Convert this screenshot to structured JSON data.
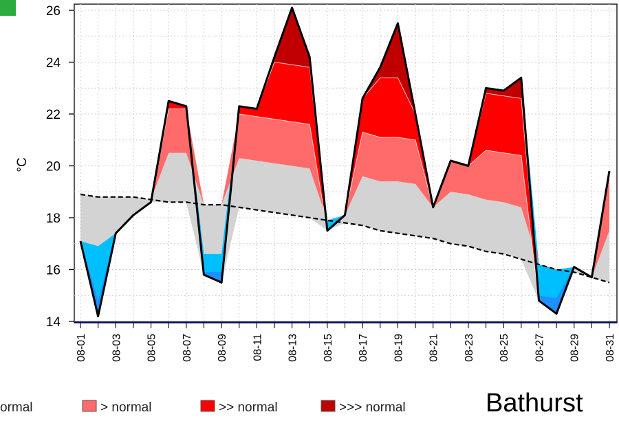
{
  "station_name": "Bathurst",
  "colors": {
    "normal": "#d3d3d3",
    "below_normal": "#1e90ff",
    "below_light": "#00bfff",
    "above_normal": "#ff6a6a",
    "above_above_normal": "#ff0000",
    "above_above_above_normal": "#c00000",
    "badge": "#2eab3e"
  },
  "chart_data": {
    "type": "area",
    "ylabel": "°C",
    "ylim": [
      14,
      26
    ],
    "yticks": [
      "14",
      "16",
      "18",
      "20",
      "22",
      "24",
      "26"
    ],
    "grid": true,
    "x": [
      "08-01",
      "08-02",
      "08-03",
      "08-04",
      "08-05",
      "08-06",
      "08-07",
      "08-08",
      "08-09",
      "08-10",
      "08-11",
      "08-12",
      "08-13",
      "08-14",
      "08-15",
      "08-16",
      "08-17",
      "08-18",
      "08-19",
      "08-20",
      "08-21",
      "08-22",
      "08-23",
      "08-24",
      "08-25",
      "08-26",
      "08-27",
      "08-28",
      "08-29",
      "08-30",
      "08-31"
    ],
    "xtick_labels": [
      "08-01",
      "08-03",
      "08-05",
      "08-07",
      "08-09",
      "08-11",
      "08-13",
      "08-15",
      "08-17",
      "08-19",
      "08-21",
      "08-23",
      "08-25",
      "08-27",
      "08-29",
      "08-31"
    ],
    "series": [
      {
        "values": [
          17.1,
          14.2,
          17.4,
          18.1,
          18.6,
          22.5,
          22.3,
          15.8,
          15.5,
          22.3,
          22.2,
          24.2,
          26.1,
          24.2,
          17.5,
          18.1,
          22.6,
          23.8,
          25.5,
          22.0,
          18.4,
          20.2,
          20.0,
          23.0,
          22.9,
          23.4,
          14.8,
          14.3,
          16.1,
          15.7,
          19.8
        ]
      },
      {
        "values": [
          18.9,
          18.8,
          18.8,
          18.8,
          18.7,
          18.6,
          18.6,
          18.5,
          18.5,
          18.4,
          18.3,
          18.2,
          18.1,
          18.0,
          17.9,
          17.8,
          17.7,
          17.5,
          17.4,
          17.3,
          17.2,
          17.0,
          16.9,
          16.7,
          16.6,
          16.4,
          16.2,
          16.0,
          15.9,
          15.7,
          15.5
        ]
      }
    ],
    "bands": {
      "low": [
        16.9,
        16.9,
        16.9,
        16.8,
        16.8,
        20.5,
        20.5,
        16.6,
        16.6,
        20.3,
        20.2,
        20.1,
        20.0,
        19.9,
        19.8,
        19.7,
        19.6,
        19.4,
        19.4,
        19.3,
        19.2,
        19.0,
        18.9,
        18.7,
        18.6,
        18.4,
        18.2,
        18.0,
        17.9,
        17.7,
        17.5
      ],
      "mid": [
        22.3,
        22.2,
        22.2,
        22.2,
        22.2,
        22.2,
        22.2,
        22.1,
        22.1,
        22.0,
        21.9,
        21.8,
        21.7,
        21.6,
        21.5,
        21.4,
        21.3,
        21.1,
        21.1,
        21.0,
        20.9,
        20.8,
        20.7,
        20.6,
        20.5,
        20.4,
        20.2,
        20.1,
        20.0,
        19.8,
        19.7
      ],
      "high": [
        24.5,
        24.4,
        24.4,
        24.3,
        24.3,
        24.2,
        24.2,
        24.1,
        24.1,
        24.0,
        24.0,
        24.0,
        23.9,
        23.8,
        23.7,
        23.6,
        23.5,
        23.4,
        23.4,
        23.2,
        23.1,
        23.0,
        22.9,
        22.8,
        22.7,
        22.6,
        22.5,
        22.4,
        22.3,
        22.2,
        22.1
      ],
      "cold": [
        15.4,
        15.3,
        15.3,
        15.3,
        15.2,
        15.2,
        15.2,
        15.1,
        15.1,
        15.0,
        15.0,
        14.9,
        14.9,
        14.8,
        14.8,
        14.7,
        14.7,
        14.6,
        14.6,
        14.5,
        14.5,
        14.4,
        14.4,
        14.3,
        14.3,
        14.2,
        14.2,
        14.1,
        14.1,
        14.0,
        14.0
      ]
    },
    "legend": [
      {
        "label": "ormal",
        "color": "#d3d3d3"
      },
      {
        "label": "> normal",
        "color": "#ff6a6a"
      },
      {
        "label": ">> normal",
        "color": "#ff0000"
      },
      {
        "label": ">>> normal",
        "color": "#c00000"
      }
    ]
  }
}
